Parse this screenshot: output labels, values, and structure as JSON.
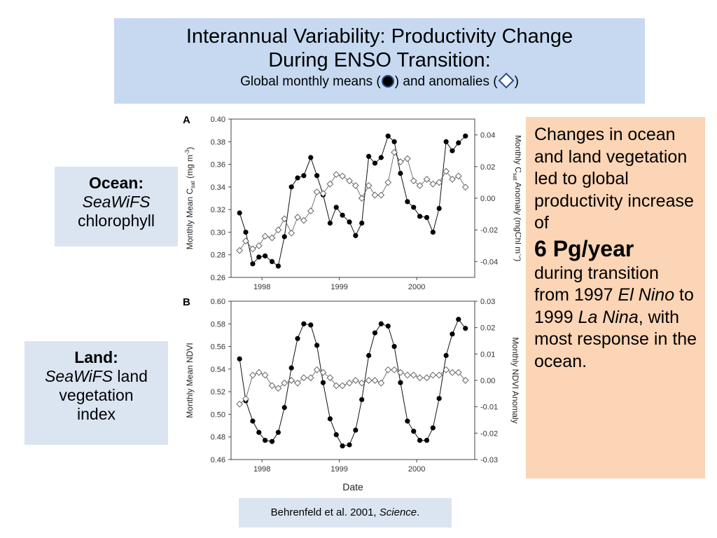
{
  "header": {
    "line1": "Interannual Variability:  Productivity Change",
    "line2": "During ENSO Transition:",
    "sub_pre": "Global monthly means (",
    "sub_mid": ") and anomalies (",
    "sub_post": ")"
  },
  "ocean_box": {
    "title": "Ocean:",
    "sensor": "SeaWiFS",
    "rest": "chlorophyll"
  },
  "land_box": {
    "title": "Land:",
    "sensor": "SeaWiFS",
    "rest1": " land",
    "rest2": "vegetation",
    "rest3": "index"
  },
  "note": {
    "p1": "Changes in ocean and land vegetation led to global productivity increase of",
    "big": "6 Pg/year",
    "p2a": "during transition from 1997 ",
    "el": "El Nino",
    "p2b": " to 1999 ",
    "la": "La Nina",
    "p2c": ", with most response in the ocean."
  },
  "citation": {
    "authors": "Behrenfeld et al. 2001, ",
    "journal": "Science",
    "end": "."
  },
  "colors": {
    "title_bg": "#c6d9f1",
    "side_bg": "#dbe5f1",
    "note_bg": "#fbd5b5"
  },
  "chart_data": [
    {
      "type": "line",
      "panel": "A",
      "ylabel": "Monthly Mean C",
      "ylabel_sub": "sat",
      "ylabel_unit": " (mg m",
      "ylabel_sup": "-3",
      "ylabel_end": ")",
      "y2label": "Monthly C",
      "y2label_sub": "sat",
      "y2label_unit": " Anomaly (mgChl m",
      "y2label_sup": "-3",
      "y2label_end": ")",
      "xticks": [
        "1998",
        "1999",
        "2000"
      ],
      "ylim": [
        0.26,
        0.4
      ],
      "yticks": [
        "0.26",
        "0.28",
        "0.30",
        "0.32",
        "0.34",
        "0.36",
        "0.38",
        "0.40"
      ],
      "y2lim": [
        -0.05,
        0.05
      ],
      "y2ticks": [
        "-0.04",
        "-0.02",
        "0.00",
        "0.02",
        "0.04"
      ],
      "x": [
        1997.71,
        1997.79,
        1997.88,
        1997.96,
        1998.04,
        1998.13,
        1998.21,
        1998.29,
        1998.38,
        1998.46,
        1998.54,
        1998.63,
        1998.71,
        1998.79,
        1998.88,
        1998.96,
        1999.04,
        1999.13,
        1999.21,
        1999.29,
        1999.38,
        1999.46,
        1999.54,
        1999.63,
        1999.71,
        1999.79,
        1999.88,
        1999.96,
        2000.04,
        2000.13,
        2000.21,
        2000.29,
        2000.38,
        2000.46,
        2000.54,
        2000.63
      ],
      "series": [
        {
          "role": "mean",
          "axis": "left",
          "marker": "filled-circle",
          "values": [
            0.317,
            0.3,
            0.272,
            0.278,
            0.279,
            0.274,
            0.27,
            0.296,
            0.34,
            0.348,
            0.35,
            0.366,
            0.35,
            0.333,
            0.308,
            0.322,
            0.315,
            0.309,
            0.297,
            0.308,
            0.367,
            0.361,
            0.366,
            0.385,
            0.38,
            0.352,
            0.327,
            0.322,
            0.314,
            0.313,
            0.3,
            0.321,
            0.38,
            0.372,
            0.379,
            0.385
          ]
        },
        {
          "role": "anomaly",
          "axis": "right",
          "marker": "open-diamond",
          "values": [
            -0.033,
            -0.027,
            -0.032,
            -0.03,
            -0.024,
            -0.025,
            -0.02,
            -0.013,
            -0.022,
            -0.012,
            -0.014,
            -0.008,
            0.004,
            0.003,
            0.009,
            0.015,
            0.014,
            0.011,
            0.008,
            0.0,
            0.008,
            0.002,
            0.002,
            0.01,
            0.029,
            0.023,
            0.025,
            0.011,
            0.008,
            0.012,
            0.009,
            0.01,
            0.017,
            0.012,
            0.014,
            0.007
          ]
        }
      ]
    },
    {
      "type": "line",
      "panel": "B",
      "ylabel": "Monthly Mean NDVI",
      "y2label": "Monthly NDVI Anomaly",
      "xlabel": "Date",
      "xticks": [
        "1998",
        "1999",
        "2000"
      ],
      "ylim": [
        0.46,
        0.6
      ],
      "yticks": [
        "0.46",
        "0.48",
        "0.50",
        "0.52",
        "0.54",
        "0.56",
        "0.58",
        "0.60"
      ],
      "y2lim": [
        -0.03,
        0.03
      ],
      "y2ticks": [
        "-0.03",
        "-0.02",
        "-0.01",
        "0.00",
        "0.01",
        "0.02",
        "0.03"
      ],
      "x": [
        1997.71,
        1997.79,
        1997.88,
        1997.96,
        1998.04,
        1998.13,
        1998.21,
        1998.29,
        1998.38,
        1998.46,
        1998.54,
        1998.63,
        1998.71,
        1998.79,
        1998.88,
        1998.96,
        1999.04,
        1999.13,
        1999.21,
        1999.29,
        1999.38,
        1999.46,
        1999.54,
        1999.63,
        1999.71,
        1999.79,
        1999.88,
        1999.96,
        2000.04,
        2000.13,
        2000.21,
        2000.29,
        2000.38,
        2000.46,
        2000.54,
        2000.63
      ],
      "series": [
        {
          "role": "mean",
          "axis": "left",
          "marker": "filled-circle",
          "values": [
            0.549,
            0.512,
            0.494,
            0.484,
            0.477,
            0.476,
            0.484,
            0.506,
            0.541,
            0.567,
            0.58,
            0.579,
            0.561,
            0.528,
            0.496,
            0.482,
            0.472,
            0.473,
            0.486,
            0.513,
            0.552,
            0.572,
            0.58,
            0.578,
            0.56,
            0.528,
            0.494,
            0.485,
            0.477,
            0.477,
            0.488,
            0.514,
            0.552,
            0.571,
            0.584,
            0.576
          ]
        },
        {
          "role": "anomaly",
          "axis": "right",
          "marker": "open-diamond",
          "values": [
            -0.009,
            -0.007,
            0.002,
            0.003,
            0.002,
            -0.002,
            -0.003,
            -0.001,
            0.0,
            -0.001,
            0.001,
            0.001,
            0.004,
            0.003,
            0.001,
            -0.002,
            -0.002,
            -0.001,
            0.0,
            -0.001,
            0.0,
            0.0,
            -0.001,
            0.004,
            0.004,
            0.003,
            0.002,
            0.002,
            0.001,
            0.001,
            0.002,
            0.002,
            0.004,
            0.003,
            0.003,
            0.0
          ]
        }
      ]
    }
  ]
}
